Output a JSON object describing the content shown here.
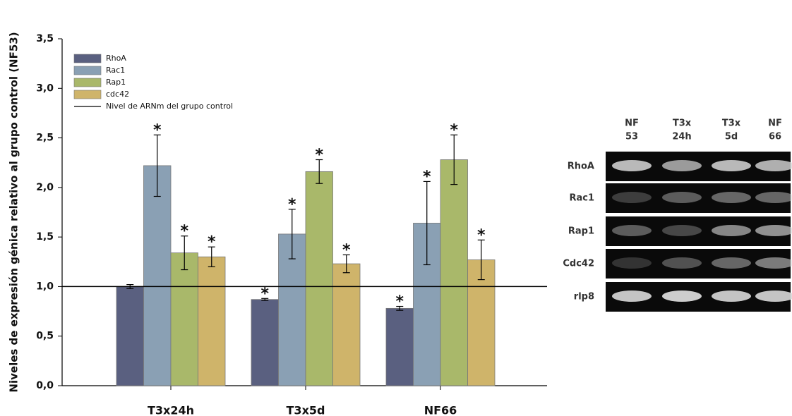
{
  "chart_data": {
    "type": "bar",
    "y_label": "Niveles de expresión génica relativo al grupo control (NF53)",
    "categories": [
      "T3x24h",
      "T3x5d",
      "NF66"
    ],
    "series": [
      {
        "name": "RhoA",
        "color": "#5a6080",
        "values": [
          1.0,
          0.87,
          0.78
        ],
        "errors": [
          0.02,
          0.01,
          0.02
        ],
        "markers": [
          null,
          "*",
          "*"
        ]
      },
      {
        "name": "Rac1",
        "color": "#8aa0b4",
        "values": [
          2.22,
          1.53,
          1.64
        ],
        "errors": [
          0.31,
          0.25,
          0.42
        ],
        "markers": [
          "*",
          "*",
          "*"
        ]
      },
      {
        "name": "Rap1",
        "color": "#a9b86a",
        "values": [
          1.34,
          2.16,
          2.28
        ],
        "errors": [
          0.17,
          0.12,
          0.25
        ],
        "markers": [
          "*",
          "*",
          "*"
        ]
      },
      {
        "name": "cdc42",
        "color": "#cfb46a",
        "values": [
          1.3,
          1.23,
          1.27
        ],
        "errors": [
          0.1,
          0.09,
          0.2
        ],
        "markers": [
          "*",
          "*",
          "*"
        ]
      }
    ],
    "reference_line": {
      "value": 1.0,
      "label": "Nivel de ARNm del grupo control",
      "color": "#000000"
    },
    "ylim": [
      0,
      3.5
    ],
    "yticks": [
      {
        "value": 0,
        "label": "0,0"
      },
      {
        "value": 0.5,
        "label": "0,5"
      },
      {
        "value": 1,
        "label": "1,0"
      },
      {
        "value": 1.5,
        "label": "1,5"
      },
      {
        "value": 2,
        "label": "2,0"
      },
      {
        "value": 2.5,
        "label": "2,5"
      },
      {
        "value": 3,
        "label": "3,0"
      },
      {
        "value": 3.5,
        "label": "3,5"
      }
    ],
    "legend": "upper-left"
  },
  "gel": {
    "columns": [
      [
        "NF",
        "53"
      ],
      [
        "T3x",
        "24h"
      ],
      [
        "T3x",
        "5d"
      ],
      [
        "NF",
        "66"
      ]
    ],
    "rows": [
      "RhoA",
      "Rac1",
      "Rap1",
      "Cdc42",
      "rlp8"
    ]
  }
}
